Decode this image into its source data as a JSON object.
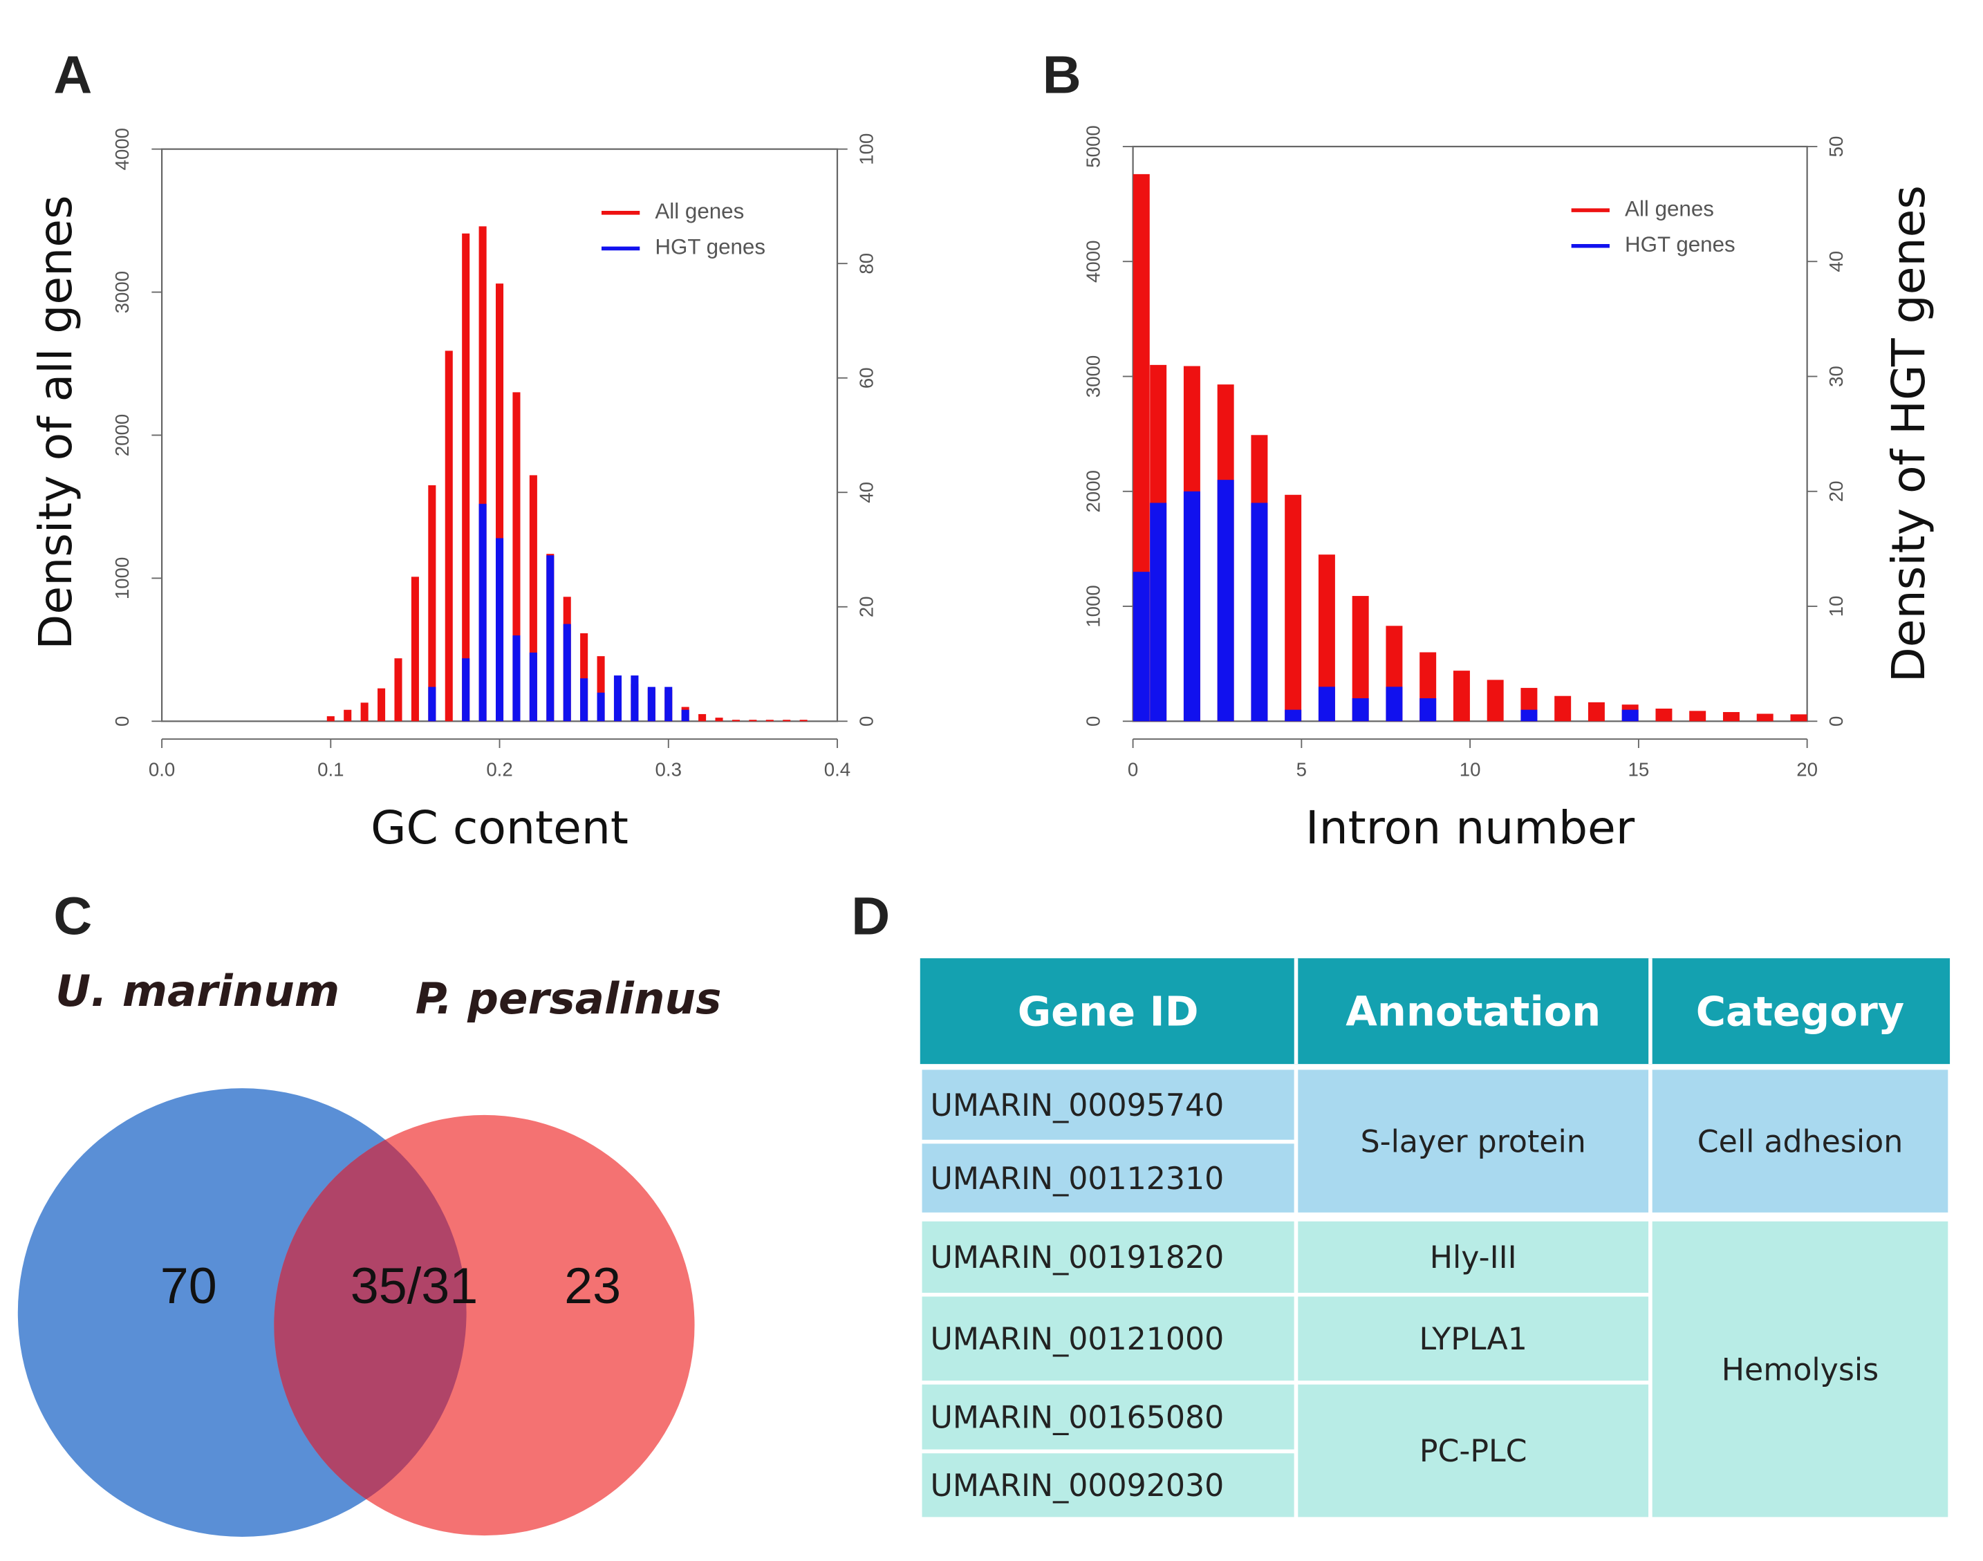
{
  "panel_labels": [
    "A",
    "B",
    "C",
    "D"
  ],
  "chart_data": [
    {
      "type": "bar",
      "xlabel": "GC content",
      "ylabel": "Density of all genes",
      "x": [
        0.1,
        0.11,
        0.12,
        0.13,
        0.14,
        0.15,
        0.16,
        0.17,
        0.18,
        0.19,
        0.2,
        0.21,
        0.22,
        0.23,
        0.24,
        0.25,
        0.26,
        0.27,
        0.28,
        0.29,
        0.3,
        0.31,
        0.32,
        0.33,
        0.34,
        0.35,
        0.36,
        0.37,
        0.38
      ],
      "xlim": [
        0,
        0.4
      ],
      "xticks": [
        {
          "value": 0,
          "label": "0.0"
        },
        0.1,
        0.2,
        0.3,
        0.4
      ],
      "ylim": [
        0,
        4000
      ],
      "yticks": [
        0,
        1000,
        2000,
        3000,
        4000
      ],
      "y2lim": [
        0,
        100
      ],
      "y2ticks": [
        0,
        20,
        40,
        60,
        80,
        100
      ],
      "legend": "upper right",
      "series": [
        {
          "name": "All genes",
          "color": "#ee1111",
          "values": [
            35,
            80,
            130,
            230,
            440,
            1010,
            1650,
            2590,
            3410,
            3460,
            3060,
            2300,
            1720,
            1170,
            870,
            615,
            455,
            310,
            260,
            230,
            220,
            100,
            50,
            25,
            10,
            10,
            10,
            10,
            10
          ]
        },
        {
          "name": "HGT genes",
          "color": "#1111ee",
          "axis": "y2",
          "values": [
            0,
            0,
            0,
            0,
            0,
            0,
            6,
            0,
            11,
            38,
            32,
            15,
            12,
            29,
            17,
            7.5,
            5,
            8,
            8,
            6,
            6,
            2,
            0,
            0,
            0,
            0,
            0,
            0,
            0
          ]
        }
      ]
    },
    {
      "type": "bar",
      "xlabel": "Intron number",
      "y2label": "Density of HGT genes",
      "x": [
        0.25,
        0.75,
        1.75,
        2.75,
        3.75,
        4.75,
        5.75,
        6.75,
        7.75,
        8.75,
        9.75,
        10.75,
        11.75,
        12.75,
        13.75,
        14.75,
        15.75,
        16.75,
        17.75,
        18.75,
        19.75
      ],
      "xlim": [
        0,
        20
      ],
      "xticks": [
        0,
        5,
        10,
        15,
        20
      ],
      "ylim": [
        0,
        5000
      ],
      "yticks": [
        0,
        1000,
        2000,
        3000,
        4000,
        5000
      ],
      "y2lim": [
        0,
        50
      ],
      "y2ticks": [
        0,
        10,
        20,
        30,
        40,
        50
      ],
      "legend": "upper right",
      "series": [
        {
          "name": "All genes",
          "color": "#ee1111",
          "values": [
            4760,
            3100,
            3090,
            2930,
            2490,
            1970,
            1450,
            1090,
            830,
            600,
            440,
            360,
            290,
            220,
            165,
            145,
            110,
            90,
            80,
            65,
            60
          ]
        },
        {
          "name": "HGT genes",
          "color": "#1111ee",
          "axis": "y2",
          "values": [
            13,
            19,
            20,
            21,
            19,
            1,
            3,
            2,
            3,
            2,
            0,
            0,
            1,
            0,
            0,
            1,
            0,
            0,
            0,
            0,
            0
          ]
        }
      ]
    }
  ],
  "venn": {
    "sets": [
      "U. marinum",
      "P. persalinus"
    ],
    "left": "70",
    "overlap": "35/31",
    "right": "23"
  },
  "table": {
    "header": [
      "Gene ID",
      "Annotation",
      "Category"
    ],
    "groups": [
      {
        "category": "Cell adhesion",
        "annotations": [
          {
            "annotation": "S-layer protein",
            "gene_ids": [
              "UMARIN_00095740",
              "UMARIN_00112310"
            ]
          }
        ]
      },
      {
        "category": "Hemolysis",
        "annotations": [
          {
            "annotation": "Hly-III",
            "gene_ids": [
              "UMARIN_00191820"
            ]
          },
          {
            "annotation": "LYPLA1",
            "gene_ids": [
              "UMARIN_00121000"
            ]
          },
          {
            "annotation": "PC-PLC",
            "gene_ids": [
              "UMARIN_00165080",
              "UMARIN_00092030"
            ]
          }
        ]
      }
    ]
  }
}
